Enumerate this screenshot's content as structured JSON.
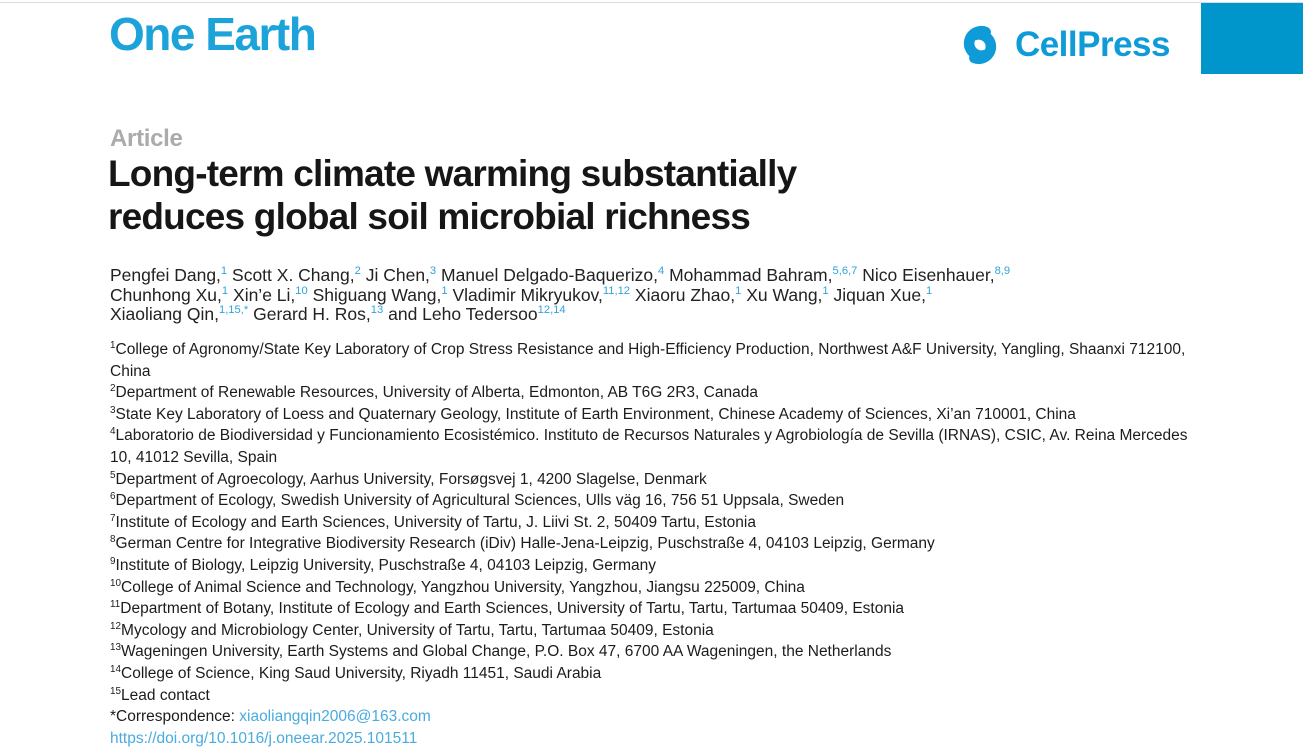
{
  "colors": {
    "brand_blue": "#1ba3da",
    "publisher_blue": "#0e9bd8",
    "accent_rect": "#0096cb",
    "link_blue": "#4aabdf",
    "sup_blue": "#2fa3dc",
    "kicker_gray": "#ababab"
  },
  "header": {
    "journal": "One Earth",
    "publisher": "CellPress",
    "publisher_icon": "cellpress-swirl-icon"
  },
  "article": {
    "kicker": "Article",
    "title_line1": "Long-term climate warming substantially",
    "title_line2": "reduces global soil microbial richness"
  },
  "authors": {
    "lines": [
      [
        {
          "name": "Pengfei Dang,",
          "sup": "1"
        },
        {
          "name": "Scott X. Chang,",
          "sup": "2"
        },
        {
          "name": "Ji Chen,",
          "sup": "3"
        },
        {
          "name": "Manuel Delgado-Baquerizo,",
          "sup": "4"
        },
        {
          "name": "Mohammad Bahram,",
          "sup": "5,6,7"
        },
        {
          "name": "Nico Eisenhauer,",
          "sup": "8,9"
        }
      ],
      [
        {
          "name": "Chunhong Xu,",
          "sup": "1"
        },
        {
          "name": "Xin’e Li,",
          "sup": "10"
        },
        {
          "name": "Shiguang Wang,",
          "sup": "1"
        },
        {
          "name": "Vladimir Mikryukov,",
          "sup": "11,12"
        },
        {
          "name": "Xiaoru Zhao,",
          "sup": "1"
        },
        {
          "name": "Xu Wang,",
          "sup": "1"
        },
        {
          "name": "Jiquan Xue,",
          "sup": "1"
        }
      ],
      [
        {
          "name": "Xiaoliang Qin,",
          "sup": "1,15,*"
        },
        {
          "name": "Gerard H. Ros,",
          "sup": "13"
        },
        {
          "name": "and Leho Tedersoo",
          "sup": "12,14"
        }
      ]
    ]
  },
  "affiliations": [
    {
      "sup": "1",
      "text": "College of Agronomy/State Key Laboratory of Crop Stress Resistance and High-Efficiency Production, Northwest A&F University, Yangling, Shaanxi 712100, China"
    },
    {
      "sup": "2",
      "text": "Department of Renewable Resources, University of Alberta, Edmonton, AB T6G 2R3, Canada"
    },
    {
      "sup": "3",
      "text": "State Key Laboratory of Loess and Quaternary Geology, Institute of Earth Environment, Chinese Academy of Sciences, Xi’an 710001, China"
    },
    {
      "sup": "4",
      "text": "Laboratorio de Biodiversidad y Funcionamiento Ecosistémico. Instituto de Recursos Naturales y Agrobiología de Sevilla (IRNAS), CSIC, Av. Reina Mercedes 10, 41012 Sevilla, Spain"
    },
    {
      "sup": "5",
      "text": "Department of Agroecology, Aarhus University, Forsøgsvej 1, 4200 Slagelse, Denmark"
    },
    {
      "sup": "6",
      "text": "Department of Ecology, Swedish University of Agricultural Sciences, Ulls väg 16, 756 51 Uppsala, Sweden"
    },
    {
      "sup": "7",
      "text": "Institute of Ecology and Earth Sciences, University of Tartu, J. Liivi St. 2, 50409 Tartu, Estonia"
    },
    {
      "sup": "8",
      "text": "German Centre for Integrative Biodiversity Research (iDiv) Halle-Jena-Leipzig, Puschstraße 4, 04103 Leipzig, Germany"
    },
    {
      "sup": "9",
      "text": "Institute of Biology, Leipzig University, Puschstraße 4, 04103 Leipzig, Germany"
    },
    {
      "sup": "10",
      "text": "College of Animal Science and Technology, Yangzhou University, Yangzhou, Jiangsu 225009, China"
    },
    {
      "sup": "11",
      "text": "Department of Botany, Institute of Ecology and Earth Sciences, University of Tartu, Tartu, Tartumaa 50409, Estonia"
    },
    {
      "sup": "12",
      "text": "Mycology and Microbiology Center, University of Tartu, Tartu, Tartumaa 50409, Estonia"
    },
    {
      "sup": "13",
      "text": "Wageningen University, Earth Systems and Global Change, P.O. Box 47, 6700 AA Wageningen, the Netherlands"
    },
    {
      "sup": "14",
      "text": "College of Science, King Saud University, Riyadh 11451, Saudi Arabia"
    },
    {
      "sup": "15",
      "text": "Lead contact"
    }
  ],
  "footer": {
    "correspondence_label": "*Correspondence: ",
    "correspondence_email": "xiaoliangqin2006@163.com",
    "doi": "https://doi.org/10.1016/j.oneear.2025.101511"
  }
}
